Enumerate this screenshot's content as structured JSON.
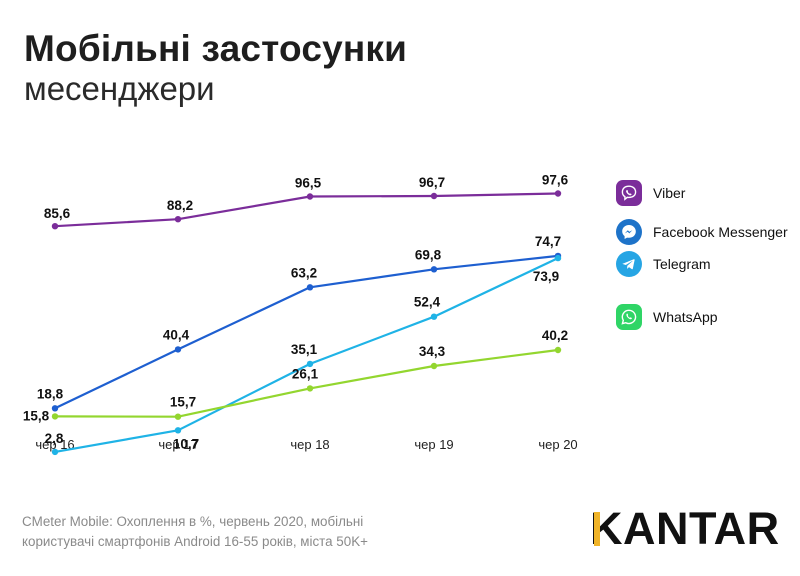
{
  "header": {
    "title": "Мобільні застосунки",
    "subtitle": "месенджери"
  },
  "legend": {
    "items": [
      {
        "label": "Viber",
        "color": "#7b2d9a",
        "icon": "viber-icon"
      },
      {
        "label": "Facebook Messenger",
        "color": "#1e73c9",
        "icon": "messenger-icon"
      },
      {
        "label": "Telegram",
        "color": "#26a5e4",
        "icon": "telegram-icon"
      },
      {
        "label": "WhatsApp",
        "color": "#2fd566",
        "icon": "whatsapp-icon"
      }
    ]
  },
  "footnote": {
    "line1": "CMeter Mobile: Охоплення в %, червень 2020, мобільні",
    "line2": "користувачі смартфонів Android 16-55 років, міста 50K+"
  },
  "logo": {
    "text_rest": "ANTAR",
    "text_first": "K",
    "accent": "#f0b429"
  },
  "chart_data": {
    "type": "line",
    "categories": [
      "чер 16",
      "чер 17",
      "чер 18",
      "чер 19",
      "чер 20"
    ],
    "ylim": [
      0,
      100
    ],
    "grid": false,
    "legend_position": "right",
    "series": [
      {
        "name": "Viber",
        "color": "#7b2d9a",
        "values": [
          85.6,
          88.2,
          96.5,
          96.7,
          97.6
        ],
        "labels": [
          "85,6",
          "88,2",
          "96,5",
          "96,7",
          "97,6"
        ]
      },
      {
        "name": "Facebook Messenger",
        "color": "#1e5fd0",
        "values": [
          18.8,
          40.4,
          63.2,
          69.8,
          74.7
        ],
        "labels": [
          "18,8",
          "40,4",
          "63,2",
          "69,8",
          "74,7"
        ]
      },
      {
        "name": "Telegram",
        "color": "#1fb3e6",
        "values": [
          2.8,
          10.7,
          35.1,
          52.4,
          73.9
        ],
        "labels": [
          "2,8",
          "10,7",
          "35,1",
          "52,4",
          "73,9"
        ]
      },
      {
        "name": "WhatsApp",
        "color": "#93d62f",
        "values": [
          15.8,
          15.7,
          26.1,
          34.3,
          40.2
        ],
        "labels": [
          "15,8",
          "15,7",
          "26,1",
          "34,3",
          "40,2"
        ]
      }
    ]
  }
}
